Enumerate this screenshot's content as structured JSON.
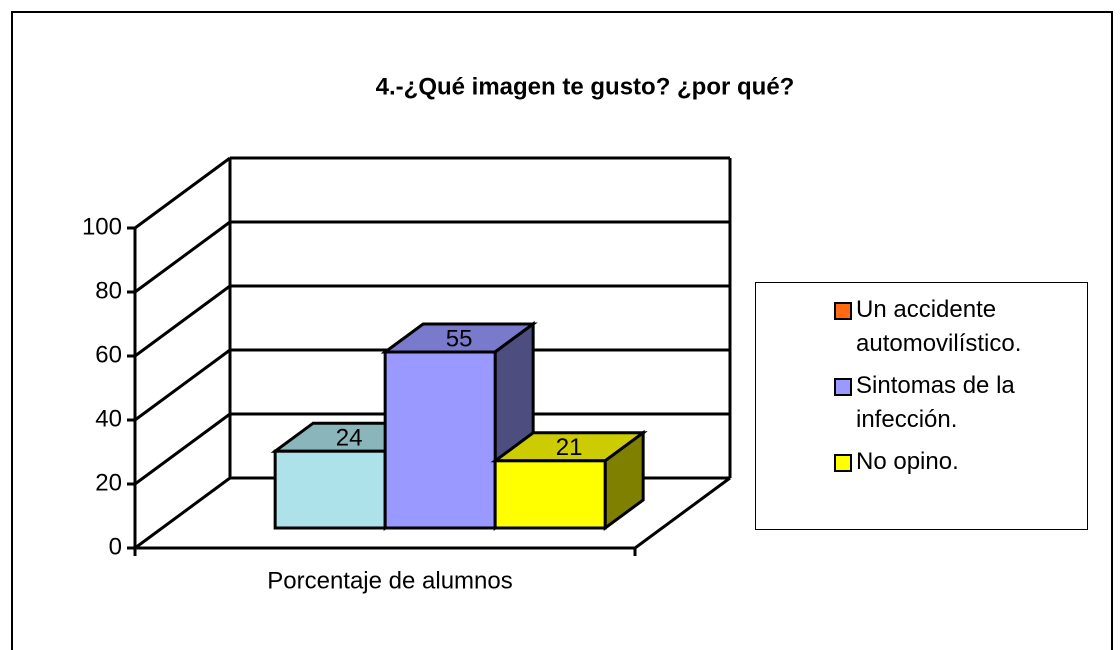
{
  "chart_data": {
    "type": "bar3d",
    "title": "4.-¿Qué imagen te gusto? ¿por qué?",
    "categories": [
      "Porcentaje de alumnos"
    ],
    "series": [
      {
        "name": "Un accidente automovilístico.",
        "color": "#ade2ea",
        "legend_color": "#ff6a13",
        "values": [
          24
        ]
      },
      {
        "name": "Sintomas de la infección.",
        "color": "#9999ff",
        "values": [
          55
        ]
      },
      {
        "name": "No opino.",
        "color": "#ffff00",
        "values": [
          21
        ]
      }
    ],
    "ylim": [
      0,
      100
    ],
    "yticks": [
      0,
      20,
      40,
      60,
      80,
      100
    ],
    "grid": true,
    "legend": "right"
  }
}
